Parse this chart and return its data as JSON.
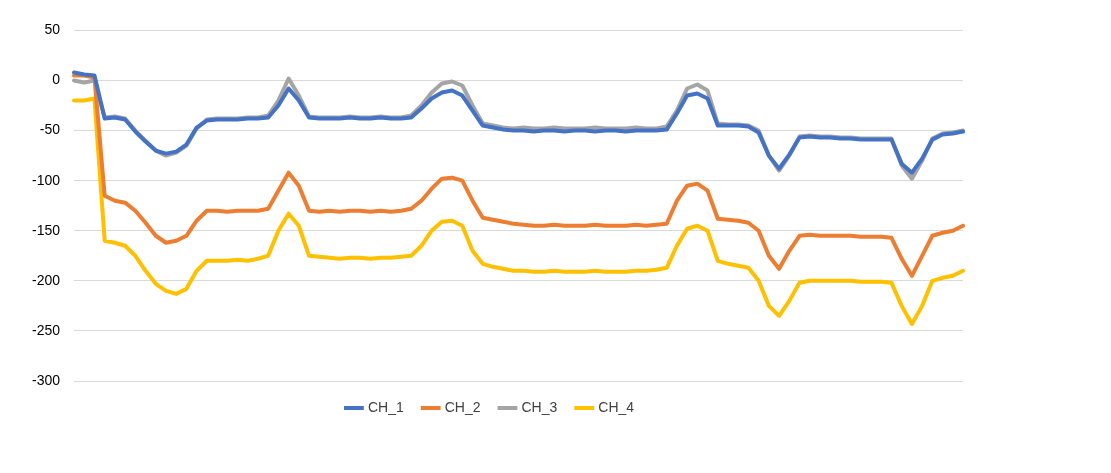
{
  "chart_data": {
    "type": "line",
    "categories": [
      null,
      null,
      null,
      null,
      null,
      null,
      null,
      null,
      null,
      null,
      null,
      null,
      null,
      null,
      null,
      null,
      null,
      null,
      null,
      null,
      null,
      null,
      null,
      null,
      null,
      null,
      null,
      null,
      null,
      null,
      null,
      null,
      null,
      null,
      null,
      null,
      null,
      null,
      null,
      null,
      null,
      null,
      null,
      null,
      null,
      null,
      null,
      null,
      null,
      null,
      null,
      null,
      null,
      null,
      null,
      null,
      null,
      null,
      null,
      null,
      null,
      null,
      null,
      null,
      null,
      null,
      null,
      null,
      null,
      null,
      null,
      null,
      null,
      null,
      null,
      null,
      null,
      null,
      null,
      null,
      null,
      null,
      null,
      null,
      null,
      null,
      null,
      null
    ],
    "series": [
      {
        "name": "CH_1",
        "color": "#4472c4",
        "values": [
          8,
          6,
          5,
          -38,
          -37,
          -39,
          -51,
          -61,
          -70,
          -73,
          -71,
          -64,
          -47,
          -40,
          -39,
          -39,
          -39,
          -38,
          -38,
          -37,
          -25,
          -8,
          -20,
          -37,
          -38,
          -38,
          -38,
          -37,
          -38,
          -38,
          -37,
          -38,
          -38,
          -37,
          -28,
          -18,
          -12,
          -10,
          -15,
          -30,
          -45,
          -47,
          -49,
          -50,
          -50,
          -51,
          -50,
          -50,
          -51,
          -50,
          -50,
          -51,
          -50,
          -50,
          -51,
          -50,
          -50,
          -50,
          -49,
          -33,
          -15,
          -13,
          -18,
          -45,
          -45,
          -45,
          -46,
          -52,
          -75,
          -88,
          -74,
          -57,
          -56,
          -57,
          -57,
          -58,
          -58,
          -59,
          -59,
          -59,
          -59,
          -83,
          -92,
          -78,
          -59,
          -54,
          -53,
          -51
        ]
      },
      {
        "name": "CH_2",
        "color": "#ed7d31",
        "values": [
          5,
          5,
          3,
          -115,
          -120,
          -122,
          -130,
          -142,
          -155,
          -162,
          -160,
          -155,
          -140,
          -130,
          -130,
          -131,
          -130,
          -130,
          -130,
          -128,
          -110,
          -92,
          -105,
          -130,
          -131,
          -130,
          -131,
          -130,
          -130,
          -131,
          -130,
          -131,
          -130,
          -128,
          -120,
          -108,
          -98,
          -97,
          -100,
          -120,
          -137,
          -139,
          -141,
          -143,
          -144,
          -145,
          -145,
          -144,
          -145,
          -145,
          -145,
          -144,
          -145,
          -145,
          -145,
          -144,
          -145,
          -144,
          -143,
          -120,
          -105,
          -103,
          -110,
          -138,
          -139,
          -140,
          -142,
          -150,
          -175,
          -188,
          -170,
          -155,
          -154,
          -155,
          -155,
          -155,
          -155,
          -156,
          -156,
          -156,
          -157,
          -178,
          -195,
          -175,
          -155,
          -152,
          -150,
          -145
        ]
      },
      {
        "name": "CH_3",
        "color": "#a5a5a5",
        "values": [
          0,
          -2,
          0,
          -37,
          -36,
          -38,
          -50,
          -60,
          -70,
          -75,
          -72,
          -65,
          -48,
          -39,
          -38,
          -38,
          -38,
          -37,
          -37,
          -35,
          -20,
          2,
          -15,
          -36,
          -37,
          -37,
          -37,
          -36,
          -37,
          -37,
          -36,
          -37,
          -37,
          -35,
          -25,
          -12,
          -3,
          -1,
          -5,
          -25,
          -43,
          -45,
          -47,
          -48,
          -47,
          -48,
          -48,
          -47,
          -48,
          -48,
          -48,
          -47,
          -48,
          -48,
          -48,
          -47,
          -48,
          -48,
          -46,
          -30,
          -8,
          -4,
          -10,
          -43,
          -44,
          -44,
          -45,
          -50,
          -75,
          -90,
          -75,
          -56,
          -55,
          -56,
          -56,
          -57,
          -57,
          -58,
          -58,
          -58,
          -58,
          -85,
          -98,
          -80,
          -58,
          -53,
          -52,
          -50
        ]
      },
      {
        "name": "CH_4",
        "color": "#ffc000",
        "values": [
          -20,
          -20,
          -18,
          -160,
          -162,
          -165,
          -175,
          -190,
          -203,
          -210,
          -213,
          -208,
          -190,
          -180,
          -180,
          -180,
          -179,
          -180,
          -178,
          -175,
          -150,
          -133,
          -145,
          -175,
          -176,
          -177,
          -178,
          -177,
          -177,
          -178,
          -177,
          -177,
          -176,
          -175,
          -165,
          -150,
          -141,
          -140,
          -145,
          -170,
          -183,
          -186,
          -188,
          -190,
          -190,
          -191,
          -191,
          -190,
          -191,
          -191,
          -191,
          -190,
          -191,
          -191,
          -191,
          -190,
          -190,
          -189,
          -187,
          -165,
          -148,
          -145,
          -150,
          -180,
          -183,
          -185,
          -187,
          -200,
          -225,
          -235,
          -220,
          -202,
          -200,
          -200,
          -200,
          -200,
          -200,
          -201,
          -201,
          -201,
          -202,
          -225,
          -243,
          -225,
          -200,
          -197,
          -195,
          -190
        ]
      }
    ],
    "ylim": [
      -300,
      50
    ],
    "yticks": [
      -300,
      -250,
      -200,
      -150,
      -100,
      -50,
      0,
      50
    ],
    "grid": "y",
    "legend": "bottom",
    "tick_labels": "y",
    "marker": "none",
    "line_style": "solid"
  }
}
